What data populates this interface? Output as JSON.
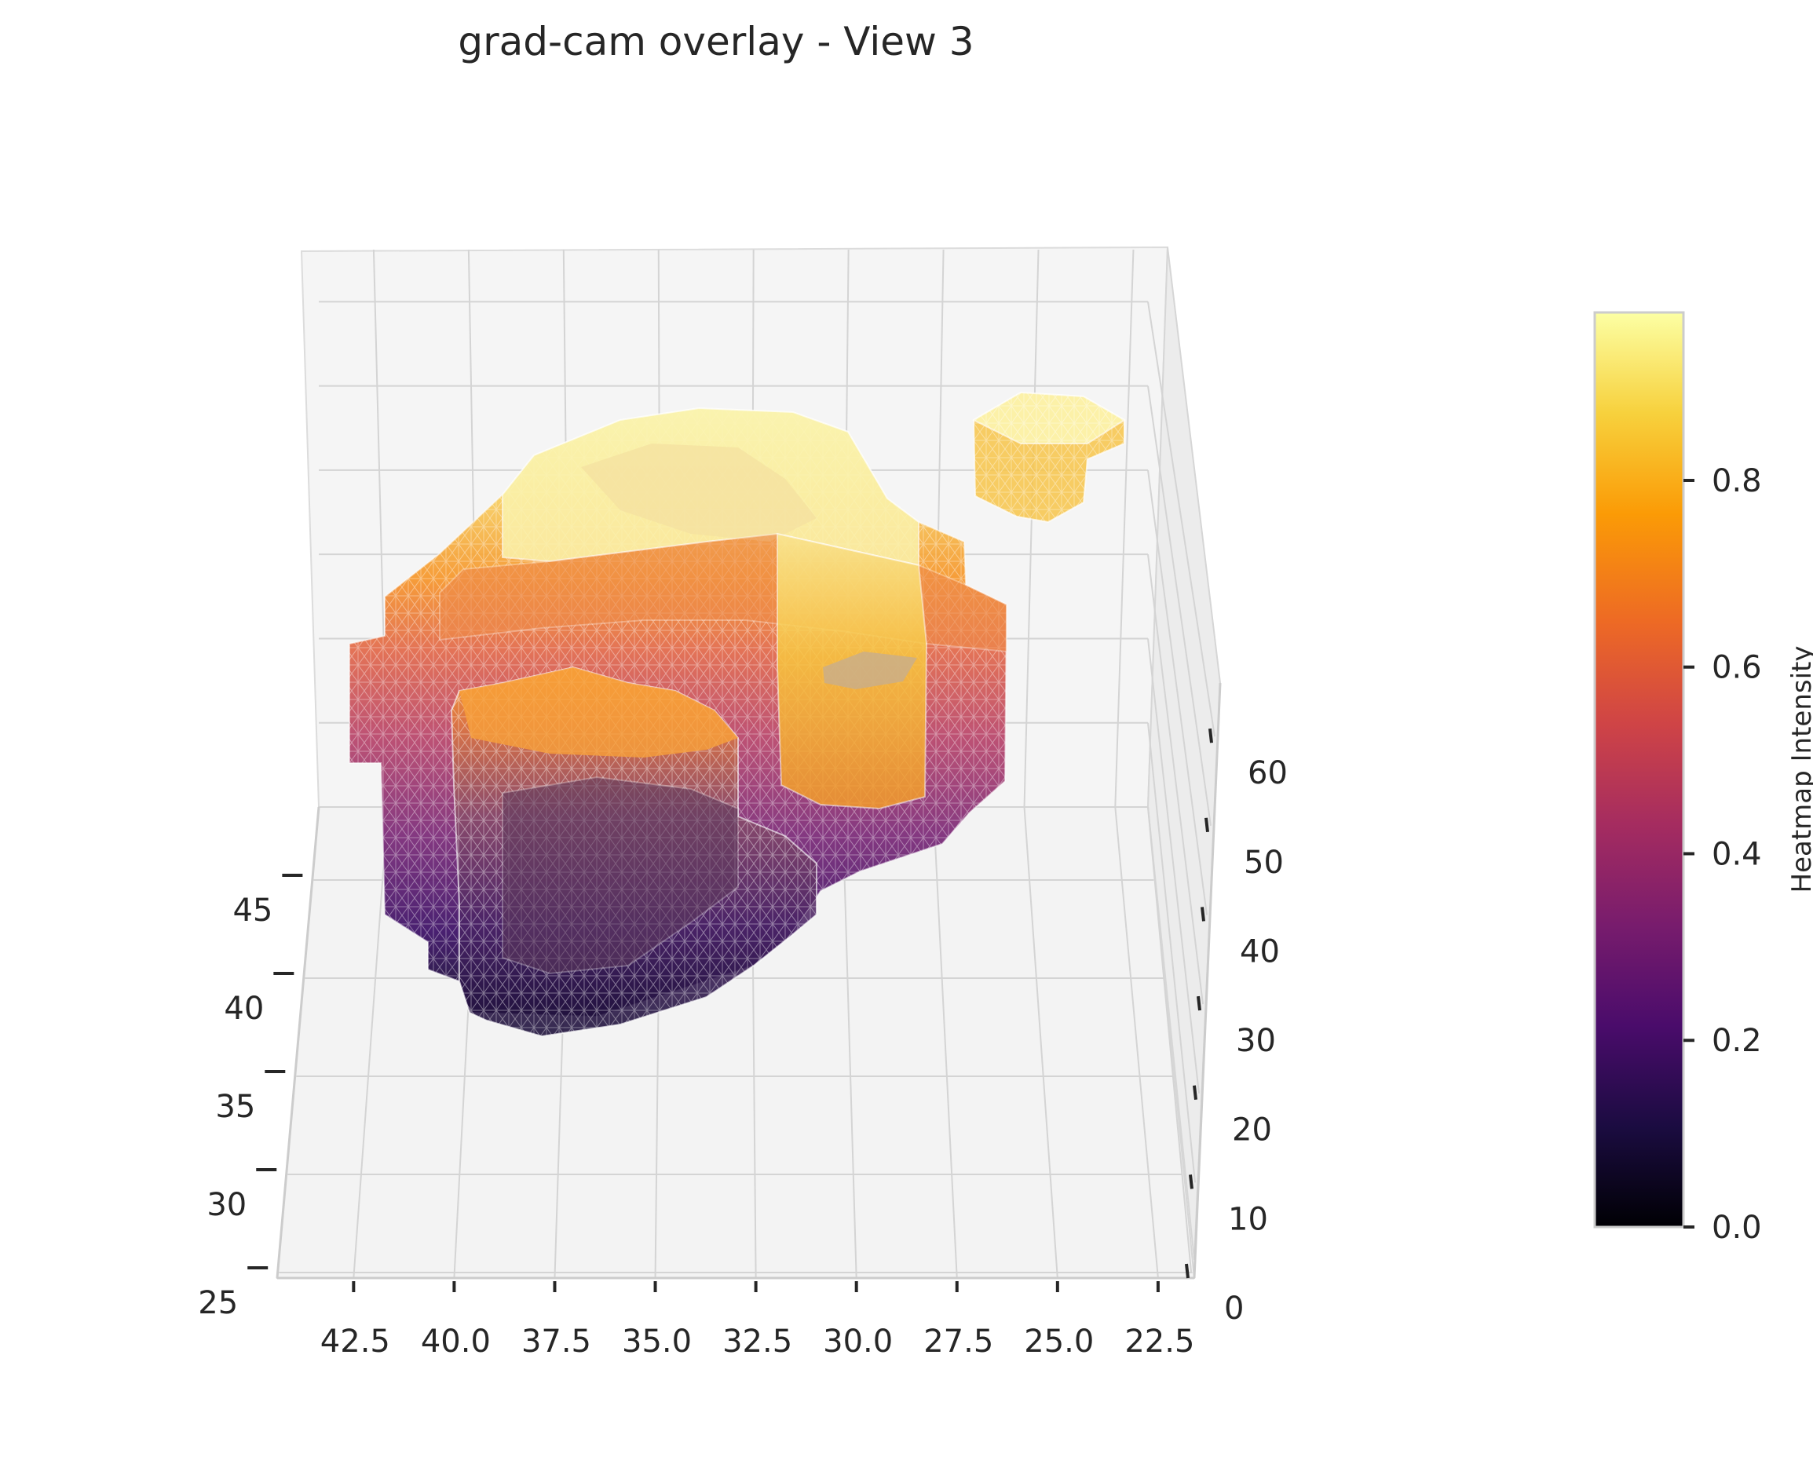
{
  "chart_data": {
    "type": "3d-surface",
    "title": "grad-cam overlay - View 3",
    "x_ticks": [
      "42.5",
      "40.0",
      "37.5",
      "35.0",
      "32.5",
      "30.0",
      "27.5",
      "25.0",
      "22.5"
    ],
    "y_ticks": [
      "25",
      "30",
      "35",
      "40",
      "45"
    ],
    "z_ticks": [
      "0",
      "10",
      "20",
      "30",
      "40",
      "50",
      "60"
    ],
    "xlim": [
      44.4,
      21.6
    ],
    "ylim": [
      24,
      48
    ],
    "zlim": [
      0,
      66
    ],
    "grid": true,
    "colormap": "inferno",
    "colorbar": {
      "label": "Heatmap Intensity",
      "ticks": [
        "0.0",
        "0.2",
        "0.4",
        "0.6",
        "0.8"
      ],
      "range": [
        0.0,
        0.98
      ]
    },
    "colors": {
      "pane": "#f3f3f3",
      "grid": "#d0d0d0",
      "text": "#262626",
      "cmap_stops": [
        "#000004",
        "#1b0c41",
        "#4a0c6b",
        "#781c6d",
        "#a52c60",
        "#cf4446",
        "#ed6925",
        "#fb9b06",
        "#f7d13d",
        "#fcffa4"
      ]
    }
  }
}
